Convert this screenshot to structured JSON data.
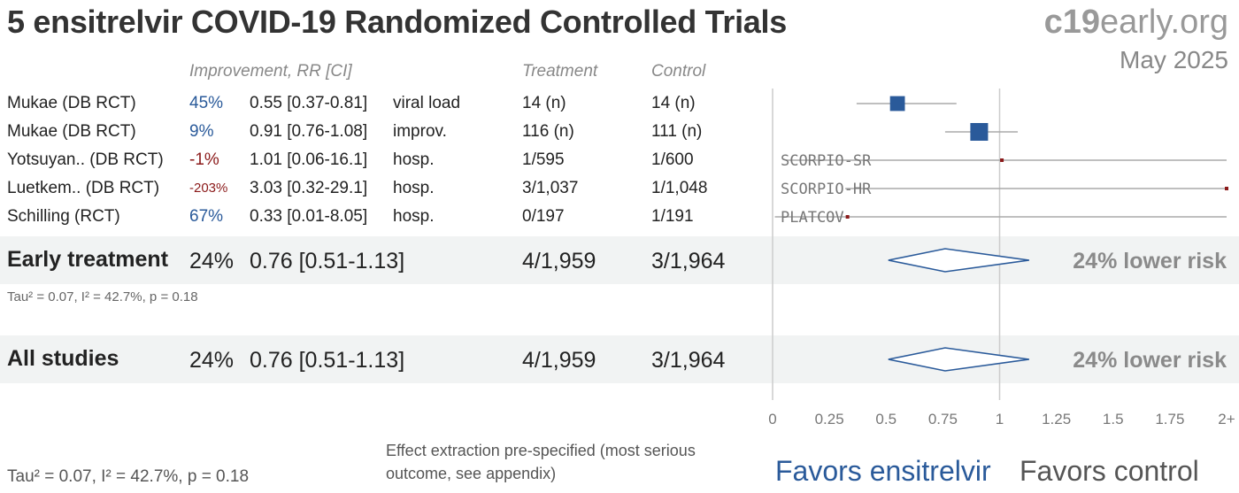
{
  "header": {
    "title": "5 ensitrelvir COVID-19 Randomized Controlled Trials",
    "site_bold": "c19",
    "site_rest": "early.org",
    "date": "May 2025"
  },
  "columns": {
    "improvement": "Improvement, RR [CI]",
    "treatment": "Treatment",
    "control": "Control"
  },
  "studies": [
    {
      "name": "Mukae (DB RCT)",
      "pct": "45%",
      "rr": "0.55 [0.37-0.81]",
      "outcome": "viral load",
      "treatment": "14 (n)",
      "control": "14 (n)",
      "tag": ""
    },
    {
      "name": "Mukae (DB RCT)",
      "pct": "9%",
      "rr": "0.91 [0.76-1.08]",
      "outcome": "improv.",
      "treatment": "116 (n)",
      "control": "111 (n)",
      "tag": ""
    },
    {
      "name": "Yotsuyan.. (DB RCT)",
      "pct": "-1%",
      "rr": "1.01 [0.06-16.1]",
      "outcome": "hosp.",
      "treatment": "1/595",
      "control": "1/600",
      "tag": "SCORPIO-SR"
    },
    {
      "name": "Luetkem.. (DB RCT)",
      "pct": "-203%",
      "rr": "3.03 [0.32-29.1]",
      "outcome": "hosp.",
      "treatment": "3/1,037",
      "control": "1/1,048",
      "tag": "SCORPIO-HR"
    },
    {
      "name": "Schilling (RCT)",
      "pct": "67%",
      "rr": "0.33 [0.01-8.05]",
      "outcome": "hosp.",
      "treatment": "0/197",
      "control": "1/191",
      "tag": "PLATCOV"
    }
  ],
  "groups": [
    {
      "label": "Early treatment",
      "pct": "24%",
      "rr": "0.76 [0.51-1.13]",
      "treatment": "4/1,959",
      "control": "3/1,964",
      "summary": "24% lower risk",
      "tau": "Tau² = 0.07, I² = 42.7%, p = 0.18"
    },
    {
      "label": "All studies",
      "pct": "24%",
      "rr": "0.76 [0.51-1.13]",
      "treatment": "4/1,959",
      "control": "3/1,964",
      "summary": "24% lower risk",
      "tau": ""
    }
  ],
  "footer": {
    "tau": "Tau² = 0.07, I² = 42.7%, p = 0.18",
    "note": "Effect extraction pre-specified (most serious outcome, see appendix)",
    "favors_left": "Favors ensitrelvir",
    "favors_right": "Favors control"
  },
  "colors": {
    "favor_treatment": "#2a5a9a",
    "favor_control": "#8b1a1a",
    "marker": "#2a5a9a",
    "grid": "#cccccc"
  },
  "chart_data": {
    "type": "forest",
    "xlim": [
      0,
      2
    ],
    "x_ticks": [
      "0",
      "0.25",
      "0.5",
      "0.75",
      "1",
      "1.25",
      "1.5",
      "1.75",
      "2+"
    ],
    "reference_line": 1,
    "studies": [
      {
        "rr": 0.55,
        "lo": 0.37,
        "hi": 0.81,
        "weight": 0.8
      },
      {
        "rr": 0.91,
        "lo": 0.76,
        "hi": 1.08,
        "weight": 1.0
      },
      {
        "rr": 1.01,
        "lo": 0.06,
        "hi": 16.1,
        "weight": 0.15
      },
      {
        "rr": 3.03,
        "lo": 0.32,
        "hi": 29.1,
        "weight": 0.15
      },
      {
        "rr": 0.33,
        "lo": 0.01,
        "hi": 8.05,
        "weight": 0.1
      }
    ],
    "summaries": [
      {
        "rr": 0.76,
        "lo": 0.51,
        "hi": 1.13
      },
      {
        "rr": 0.76,
        "lo": 0.51,
        "hi": 1.13
      }
    ]
  }
}
